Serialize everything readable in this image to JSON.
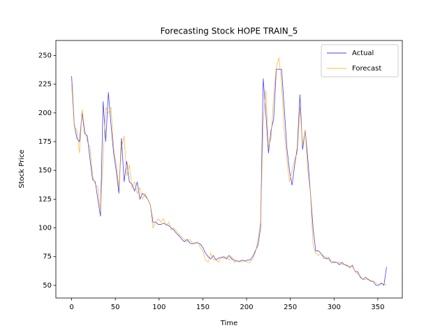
{
  "chart_data": {
    "type": "line",
    "title": "Forecasting Stock HOPE TRAIN_5",
    "xlabel": "Time",
    "ylabel": "Stock Price",
    "x": [
      0,
      3,
      6,
      9,
      12,
      15,
      18,
      21,
      24,
      27,
      30,
      33,
      36,
      39,
      42,
      45,
      48,
      51,
      54,
      57,
      60,
      63,
      66,
      69,
      72,
      75,
      78,
      81,
      84,
      87,
      90,
      93,
      96,
      99,
      102,
      105,
      108,
      111,
      114,
      117,
      120,
      123,
      126,
      129,
      132,
      135,
      138,
      141,
      144,
      147,
      150,
      153,
      156,
      159,
      162,
      165,
      168,
      171,
      174,
      177,
      180,
      183,
      186,
      189,
      192,
      195,
      198,
      201,
      204,
      207,
      210,
      213,
      216,
      219,
      222,
      225,
      228,
      231,
      234,
      237,
      240,
      243,
      246,
      249,
      252,
      255,
      258,
      261,
      264,
      267,
      270,
      273,
      276,
      279,
      282,
      285,
      288,
      291,
      294,
      297,
      300,
      303,
      306,
      309,
      312,
      315,
      318,
      321,
      324,
      327,
      330,
      333,
      336,
      339,
      342,
      345,
      348,
      351,
      354,
      357,
      360
    ],
    "series": [
      {
        "name": "Actual",
        "color": "#0000ff",
        "values": [
          232,
          190,
          178,
          175,
          200,
          182,
          180,
          160,
          142,
          140,
          125,
          110,
          210,
          175,
          218,
          190,
          165,
          150,
          130,
          178,
          140,
          158,
          140,
          138,
          132,
          140,
          125,
          130,
          128,
          125,
          120,
          105,
          105,
          103,
          103,
          104,
          103,
          102,
          100,
          98,
          95,
          93,
          90,
          88,
          90,
          87,
          86,
          87,
          87,
          86,
          83,
          78,
          75,
          73,
          76,
          72,
          74,
          74,
          75,
          73,
          76,
          73,
          72,
          71,
          71,
          72,
          71,
          72,
          72,
          75,
          80,
          85,
          100,
          230,
          200,
          165,
          185,
          195,
          238,
          238,
          238,
          205,
          170,
          150,
          137,
          155,
          170,
          216,
          168,
          185,
          160,
          130,
          100,
          80,
          80,
          78,
          75,
          73,
          74,
          70,
          70,
          70,
          68,
          70,
          68,
          67,
          66,
          67,
          62,
          62,
          57,
          55,
          57,
          55,
          54,
          53,
          50,
          50,
          52,
          50,
          66
        ]
      },
      {
        "name": "Forecast",
        "color": "#ffa500",
        "values": [
          225,
          188,
          185,
          165,
          203,
          185,
          175,
          170,
          145,
          138,
          135,
          115,
          160,
          205,
          200,
          205,
          170,
          155,
          135,
          170,
          180,
          145,
          155,
          135,
          140,
          130,
          135,
          125,
          130,
          125,
          120,
          100,
          105,
          108,
          105,
          108,
          102,
          105,
          98,
          100,
          97,
          94,
          92,
          90,
          88,
          90,
          87,
          86,
          88,
          83,
          80,
          72,
          70,
          78,
          72,
          73,
          70,
          75,
          73,
          75,
          72,
          75,
          70,
          72,
          70,
          71,
          72,
          70,
          70,
          73,
          78,
          90,
          105,
          190,
          220,
          170,
          178,
          215,
          240,
          248,
          225,
          185,
          160,
          140,
          150,
          160,
          165,
          205,
          172,
          185,
          150,
          130,
          85,
          78,
          76,
          78,
          73,
          75,
          72,
          70,
          71,
          70,
          70,
          68,
          68,
          68,
          65,
          68,
          62,
          60,
          58,
          55,
          55,
          56,
          53,
          54,
          52,
          51,
          51,
          52,
          50
        ]
      }
    ],
    "xlim": [
      -18,
      378
    ],
    "ylim": [
      39,
      263
    ],
    "xticks": [
      0,
      50,
      100,
      150,
      200,
      250,
      300,
      350
    ],
    "yticks": [
      50,
      75,
      100,
      125,
      150,
      175,
      200,
      225,
      250
    ],
    "legend": "upper right"
  }
}
